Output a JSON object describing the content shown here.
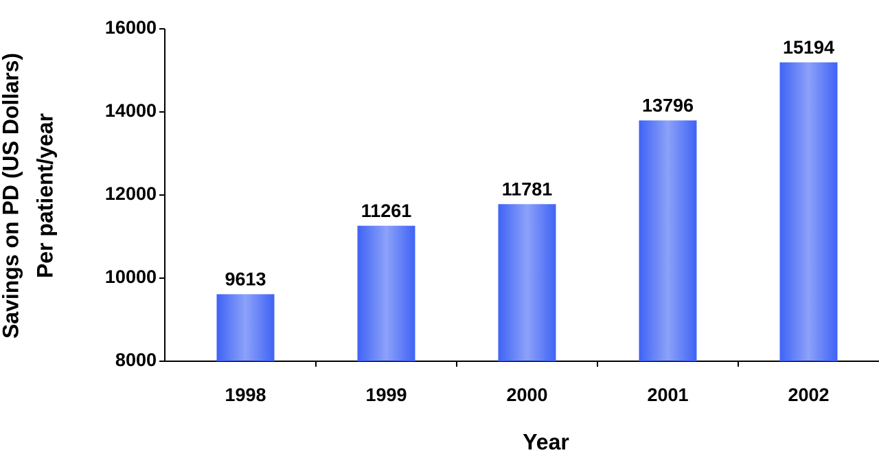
{
  "chart_data": {
    "type": "bar",
    "xlabel": "Year",
    "ylabel": [
      "Savings on PD (US Dollars)",
      "Per patient/year"
    ],
    "categories": [
      "1998",
      "1999",
      "2000",
      "2001",
      "2002"
    ],
    "values": [
      9613,
      11261,
      11781,
      13796,
      15194
    ],
    "color": "#3f63f5",
    "ylim": [
      8000,
      16000
    ],
    "yticks": [
      8000,
      10000,
      12000,
      14000,
      16000
    ],
    "grid": false
  }
}
